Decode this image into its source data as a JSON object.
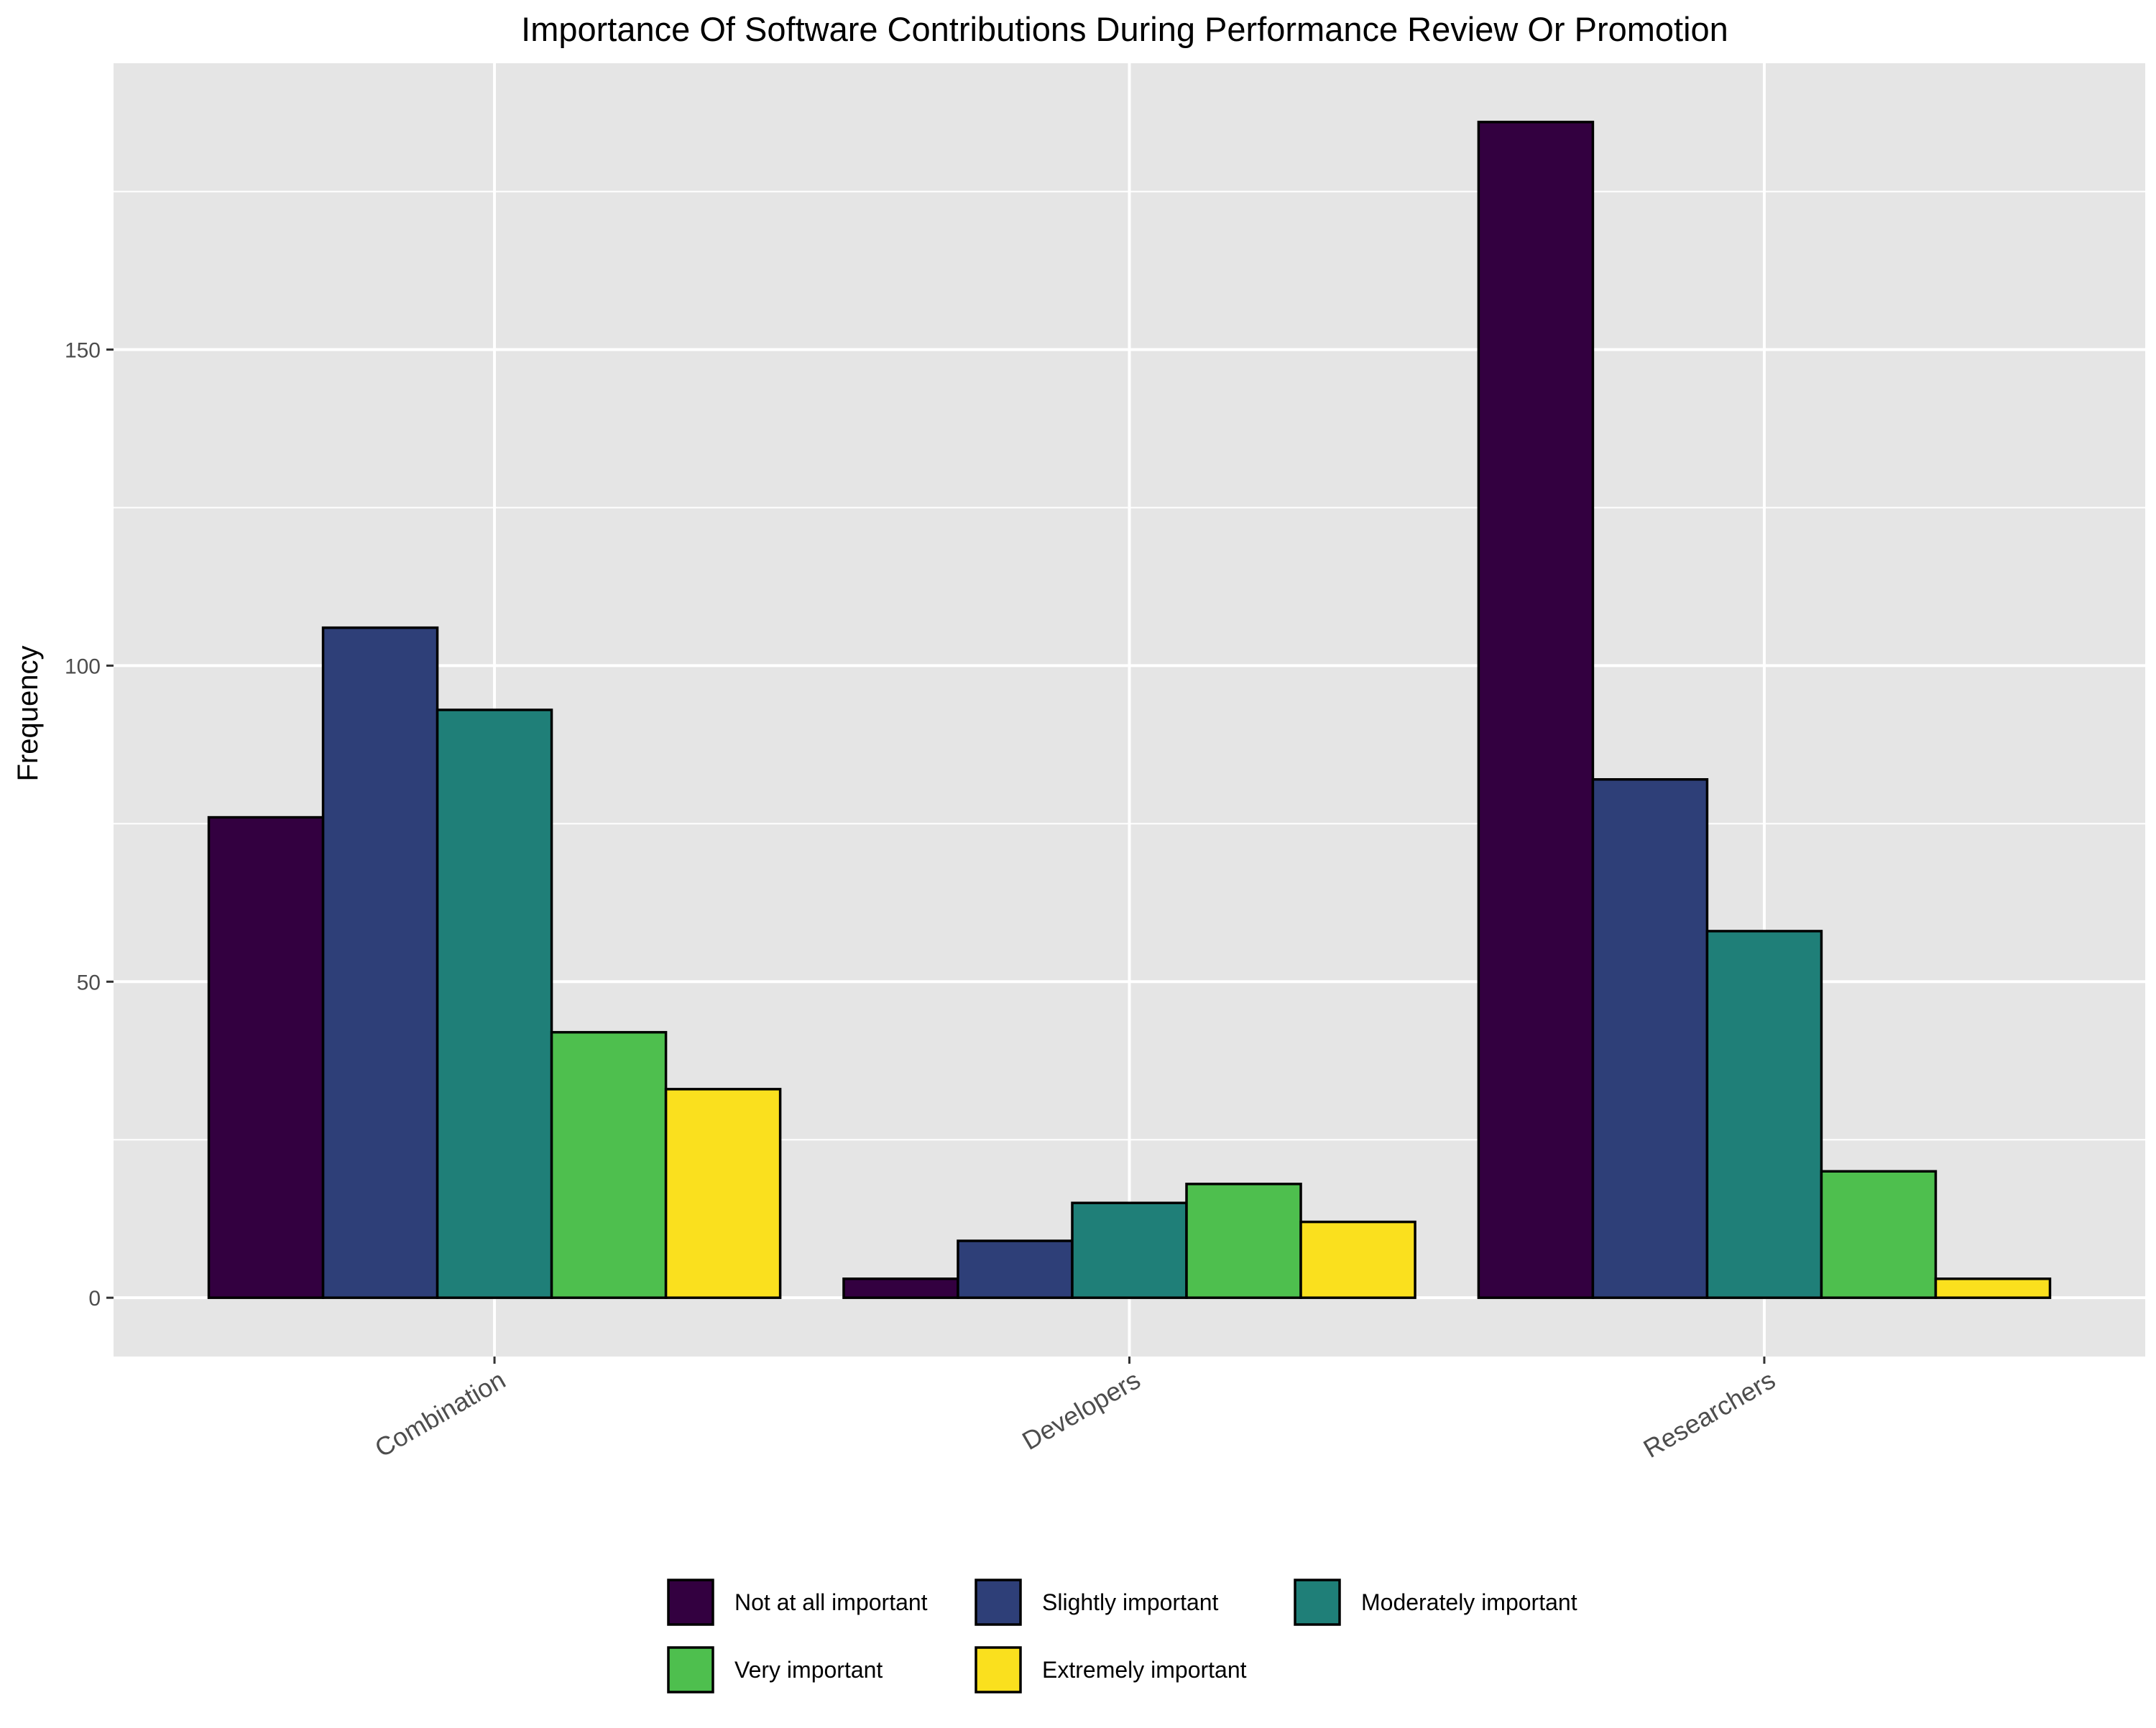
{
  "chart_data": {
    "type": "bar",
    "title": "Importance Of Software Contributions During Performance Review Or Promotion",
    "xlabel": "",
    "ylabel": "Frequency",
    "categories": [
      "Combination",
      "Developers",
      "Researchers"
    ],
    "ylim": [
      -9.3,
      195.3
    ],
    "yticks": [
      0,
      50,
      100,
      150
    ],
    "grid": true,
    "legend_position": "bottom",
    "series": [
      {
        "name": "Not at all important",
        "color": "#330040",
        "values": [
          76,
          3,
          186
        ]
      },
      {
        "name": "Slightly important",
        "color": "#2E3F78",
        "values": [
          106,
          9,
          82
        ]
      },
      {
        "name": "Moderately important",
        "color": "#1F7F78",
        "values": [
          93,
          15,
          58
        ]
      },
      {
        "name": "Very important",
        "color": "#4EBF4E",
        "values": [
          42,
          18,
          20
        ]
      },
      {
        "name": "Extremely important",
        "color": "#FAE01E",
        "values": [
          33,
          12,
          3
        ]
      }
    ],
    "panel_background": "#E5E5E5",
    "gridline_color": "#FFFFFF",
    "bar_outline_color": "#000000"
  }
}
